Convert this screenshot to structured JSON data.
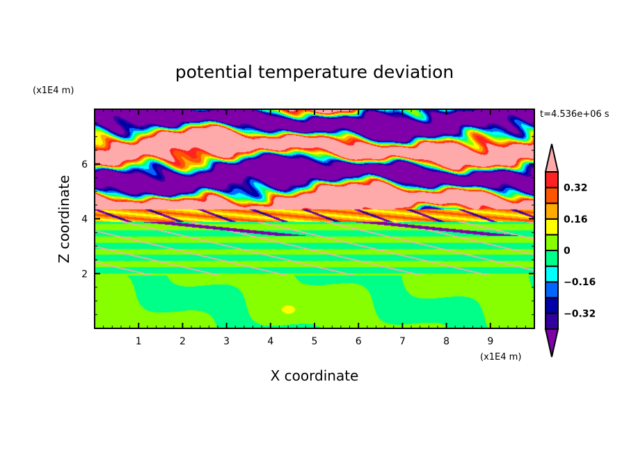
{
  "chart_data": {
    "type": "heatmap",
    "title": "potential temperature deviation",
    "xlabel": "X coordinate",
    "ylabel": "Z coordinate",
    "x_unit_label": "(x1E4 m)",
    "y_unit_label": "(x1E4 m)",
    "time_label": "t=4.536e+06 s",
    "xlim": [
      0,
      10
    ],
    "ylim": [
      0,
      8
    ],
    "xticks": [
      "1",
      "2",
      "3",
      "4",
      "5",
      "6",
      "7",
      "8",
      "9"
    ],
    "xtick_values": [
      1,
      2,
      3,
      4,
      5,
      6,
      7,
      8,
      9
    ],
    "yticks": [
      "2",
      "4",
      "6"
    ],
    "ytick_values": [
      2,
      4,
      6
    ],
    "colorbar": {
      "levels": [
        -0.4,
        -0.32,
        -0.24,
        -0.16,
        -0.08,
        0,
        0.08,
        0.16,
        0.24,
        0.32,
        0.4
      ],
      "colors": [
        "#3300a0",
        "#0000a8",
        "#0066ff",
        "#00ffff",
        "#00ff88",
        "#88ff00",
        "#ffff00",
        "#ffaa00",
        "#ff5500",
        "#ff2222"
      ],
      "under_color": "#7f00a8",
      "over_color": "#ffaaaa",
      "tick_labels": [
        "0.32",
        "0.16",
        "0",
        "−0.16",
        "−0.32"
      ],
      "tick_values": [
        0.32,
        0.16,
        0,
        -0.16,
        -0.32
      ]
    }
  }
}
